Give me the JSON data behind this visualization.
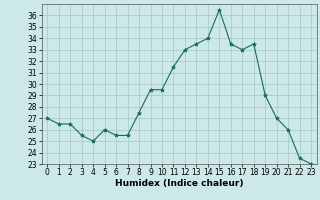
{
  "x": [
    0,
    1,
    2,
    3,
    4,
    5,
    6,
    7,
    8,
    9,
    10,
    11,
    12,
    13,
    14,
    15,
    16,
    17,
    18,
    19,
    20,
    21,
    22,
    23
  ],
  "y": [
    27,
    26.5,
    26.5,
    25.5,
    25,
    26,
    25.5,
    25.5,
    27.5,
    29.5,
    29.5,
    31.5,
    33,
    33.5,
    34,
    36.5,
    33.5,
    33,
    33.5,
    29,
    27,
    26,
    23.5,
    23
  ],
  "line_color": "#1a6b5a",
  "marker": "*",
  "marker_size": 3,
  "bg_color": "#cce8e8",
  "grid_color": "#aacccc",
  "xlabel": "Humidex (Indice chaleur)",
  "xlim": [
    -0.5,
    23.5
  ],
  "ylim": [
    23,
    37
  ],
  "yticks": [
    23,
    24,
    25,
    26,
    27,
    28,
    29,
    30,
    31,
    32,
    33,
    34,
    35,
    36
  ],
  "xticks": [
    0,
    1,
    2,
    3,
    4,
    5,
    6,
    7,
    8,
    9,
    10,
    11,
    12,
    13,
    14,
    15,
    16,
    17,
    18,
    19,
    20,
    21,
    22,
    23
  ],
  "tick_label_fontsize": 5.5,
  "xlabel_fontsize": 6.5
}
